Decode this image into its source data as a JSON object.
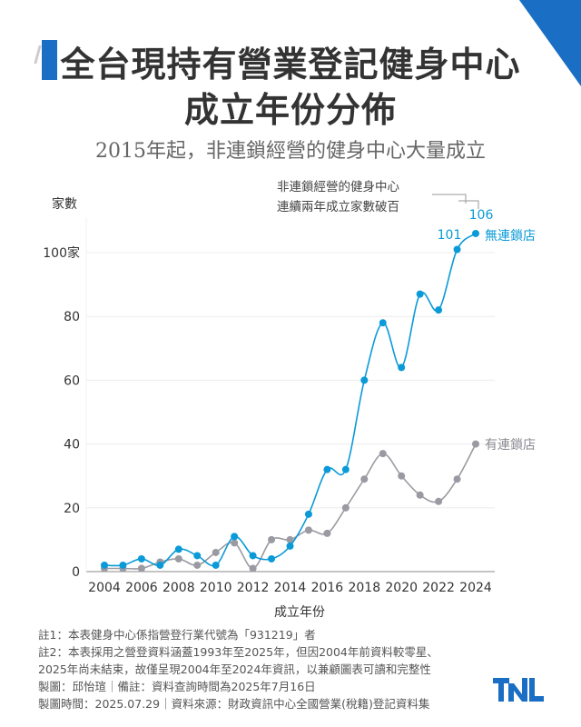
{
  "header": {
    "title_line1": "全台現持有營業登記健身中心",
    "title_line2": "成立年份分佈",
    "subtitle": "2015年起，非連鎖經營的健身中心大量成立"
  },
  "chart_data": {
    "type": "line",
    "title": "全台現持有營業登記健身中心成立年份分佈",
    "subtitle": "2015年起，非連鎖經營的健身中心大量成立",
    "xlabel": "成立年份",
    "ylabel": "家數",
    "x": [
      2004,
      2005,
      2006,
      2007,
      2008,
      2009,
      2010,
      2011,
      2012,
      2013,
      2014,
      2015,
      2016,
      2017,
      2018,
      2019,
      2020,
      2021,
      2022,
      2023,
      2024
    ],
    "x_ticks": [
      "2004",
      "2006",
      "2008",
      "2010",
      "2012",
      "2014",
      "2016",
      "2018",
      "2020",
      "2022",
      "2024"
    ],
    "y_ticks": [
      "0",
      "20",
      "40",
      "60",
      "80",
      "100家"
    ],
    "ylim": [
      0,
      110
    ],
    "grid": "horizontal",
    "series": [
      {
        "name": "無連鎖店",
        "color": "#0a9ad8",
        "values": [
          2,
          2,
          4,
          2,
          7,
          5,
          2,
          11,
          5,
          4,
          8,
          18,
          32,
          32,
          60,
          78,
          64,
          87,
          82,
          101,
          106
        ]
      },
      {
        "name": "有連鎖店",
        "color": "#9a9aa2",
        "values": [
          1,
          1,
          1,
          3,
          4,
          2,
          6,
          9,
          1,
          10,
          10,
          13,
          12,
          20,
          29,
          37,
          30,
          24,
          22,
          29,
          40
        ]
      }
    ],
    "data_labels": [
      {
        "x": 2023,
        "text": "101"
      },
      {
        "x": 2024,
        "text": "106"
      }
    ],
    "annotation": {
      "line1": "非連鎖經營的健身中心",
      "line2": "連續兩年成立家數破百"
    }
  },
  "notes": {
    "note1": "註1：本表健身中心係指營登行業代號為「931219」者",
    "note2a": "註2：本表採用之營登資料涵蓋1993年至2025年，但因2004年前資料較零星、",
    "note2b": "2025年尚未結束，故僅呈現2004年至2024年資訊，以兼顧圖表可讀和完整性",
    "credit": "製圖：邱怡瑄｜備註：資料查詢時間為2025年7月16日",
    "source": "製圖時間：2025.07.29｜資料來源：財政資訊中心全國營業(稅籍)登記資料集"
  },
  "logo": {
    "text": "TNL",
    "color": "#1a6fc4"
  }
}
